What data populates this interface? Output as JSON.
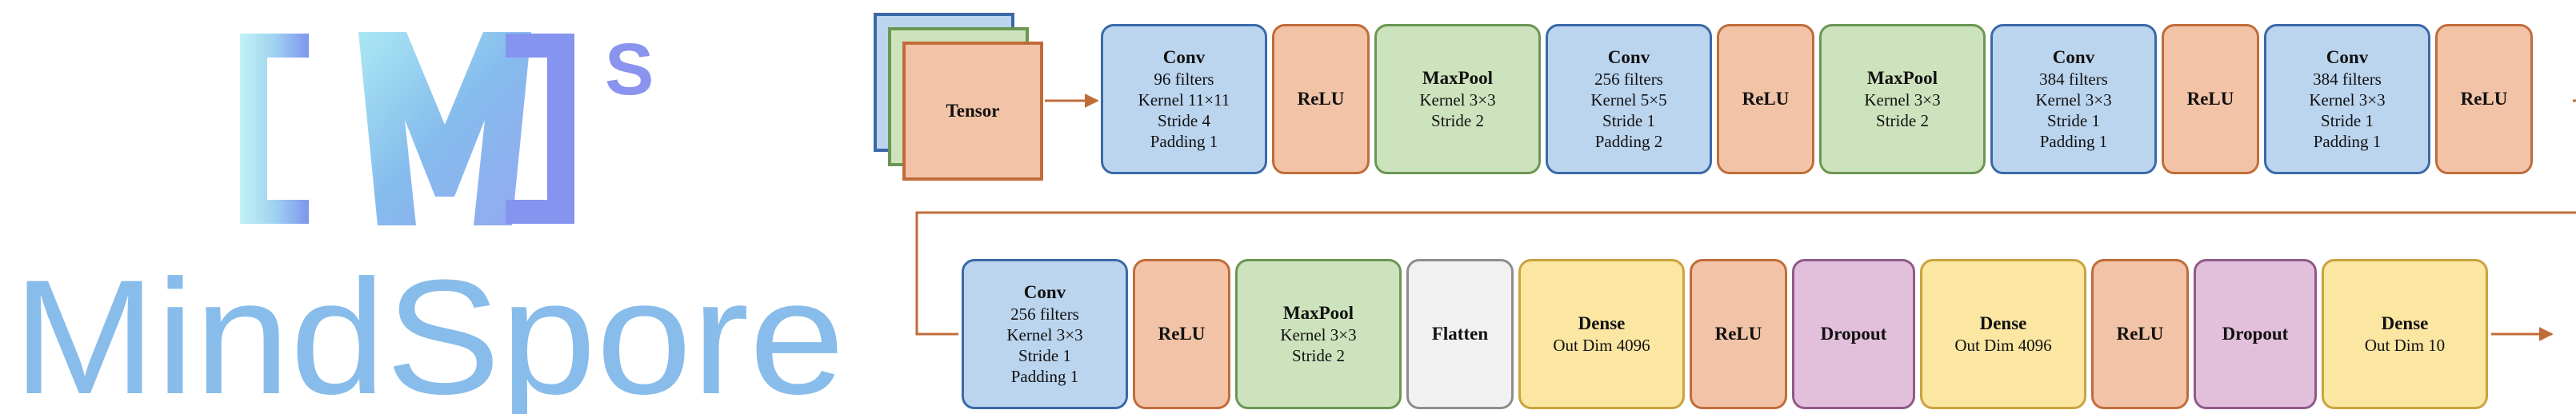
{
  "logo": {
    "bracket_text": "[M]",
    "superscript": "S",
    "wordmark": "MindSpore",
    "colors": {
      "gradient_start": "#b4ecf4",
      "gradient_end": "#8a9ff0",
      "wordmark": "#88bcea"
    }
  },
  "diagram": {
    "input": {
      "label": "Tensor"
    },
    "row1": [
      {
        "kind": "conv",
        "title": "Conv",
        "lines": [
          "96 filters",
          "Kernel 11×11",
          "Stride 4",
          "Padding 1"
        ]
      },
      {
        "kind": "relu",
        "title": "ReLU",
        "lines": []
      },
      {
        "kind": "pool",
        "title": "MaxPool",
        "lines": [
          "Kernel 3×3",
          "Stride 2"
        ]
      },
      {
        "kind": "conv",
        "title": "Conv",
        "lines": [
          "256 filters",
          "Kernel 5×5",
          "Stride 1",
          "Padding 2"
        ]
      },
      {
        "kind": "relu",
        "title": "ReLU",
        "lines": []
      },
      {
        "kind": "pool",
        "title": "MaxPool",
        "lines": [
          "Kernel 3×3",
          "Stride 2"
        ]
      },
      {
        "kind": "conv",
        "title": "Conv",
        "lines": [
          "384 filters",
          "Kernel 3×3",
          "Stride 1",
          "Padding 1"
        ]
      },
      {
        "kind": "relu",
        "title": "ReLU",
        "lines": []
      },
      {
        "kind": "conv",
        "title": "Conv",
        "lines": [
          "384 filters",
          "Kernel 3×3",
          "Stride 1",
          "Padding 1"
        ]
      },
      {
        "kind": "relu",
        "title": "ReLU",
        "lines": []
      }
    ],
    "row2": [
      {
        "kind": "conv",
        "title": "Conv",
        "lines": [
          "256 filters",
          "Kernel 3×3",
          "Stride 1",
          "Padding 1"
        ]
      },
      {
        "kind": "relu",
        "title": "ReLU",
        "lines": []
      },
      {
        "kind": "pool",
        "title": "MaxPool",
        "lines": [
          "Kernel 3×3",
          "Stride 2"
        ]
      },
      {
        "kind": "flat",
        "title": "Flatten",
        "lines": []
      },
      {
        "kind": "dense",
        "title": "Dense",
        "lines": [
          "Out Dim 4096"
        ]
      },
      {
        "kind": "relu",
        "title": "ReLU",
        "lines": []
      },
      {
        "kind": "drop",
        "title": "Dropout",
        "lines": []
      },
      {
        "kind": "dense",
        "title": "Dense",
        "lines": [
          "Out Dim 4096"
        ]
      },
      {
        "kind": "relu",
        "title": "ReLU",
        "lines": []
      },
      {
        "kind": "drop",
        "title": "Dropout",
        "lines": []
      },
      {
        "kind": "dense",
        "title": "Dense",
        "lines": [
          "Out Dim 10"
        ]
      }
    ],
    "colors": {
      "arrow": "#c06c3a",
      "tensor_back_blue": "#3a69a8",
      "tensor_back_green": "#6b9654"
    }
  }
}
